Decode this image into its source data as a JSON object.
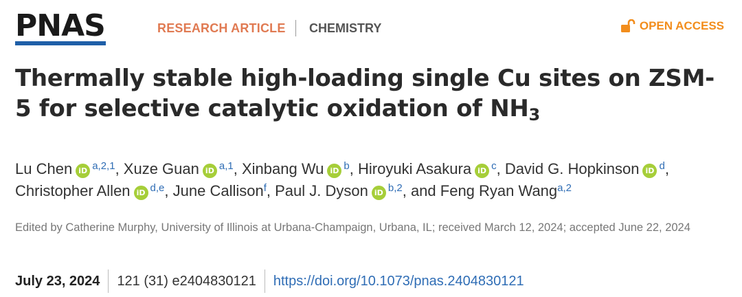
{
  "header": {
    "logo": "PNAS",
    "article_type": "RESEARCH ARTICLE",
    "subject": "CHEMISTRY",
    "open_access": "OPEN ACCESS",
    "open_access_icon": "unlocked-padlock-icon",
    "colors": {
      "logo_bar": "#1f5fa8",
      "article_type": "#e07a52",
      "open_access": "#f28d1c",
      "orcid": "#a6ce39",
      "link": "#2f6db5"
    }
  },
  "title": {
    "main": "Thermally stable high-loading single Cu sites on ZSM-5 for selective catalytic oxidation of NH",
    "subscript": "3"
  },
  "authors": [
    {
      "name": "Lu Chen",
      "orcid": true,
      "aff": "a,2,1",
      "sep": ", "
    },
    {
      "name": "Xuze Guan",
      "orcid": true,
      "aff": "a,1",
      "sep": ", "
    },
    {
      "name": "Xinbang Wu",
      "orcid": true,
      "aff": "b",
      "sep": ", "
    },
    {
      "name": "Hiroyuki Asakura",
      "orcid": true,
      "aff": "c",
      "sep": ", "
    },
    {
      "name": "David G. Hopkinson",
      "orcid": true,
      "aff": "d",
      "sep": ", "
    },
    {
      "name": "Christopher Allen",
      "orcid": true,
      "aff": "d,e",
      "sep": ", "
    },
    {
      "name": "June Callison",
      "orcid": false,
      "aff": "f",
      "sep": ", "
    },
    {
      "name": "Paul J. Dyson",
      "orcid": true,
      "aff": "b,2",
      "sep": ", and "
    },
    {
      "name": "Feng Ryan Wang",
      "orcid": false,
      "aff": "a,2",
      "sep": ""
    }
  ],
  "orcid_label": "iD",
  "editor": "Edited by Catherine Murphy, University of Illinois at Urbana-Champaign, Urbana, IL; received March 12, 2024; accepted June 22, 2024",
  "meta": {
    "date": "July 23, 2024",
    "citation": "121 (31) e2404830121",
    "doi": "https://doi.org/10.1073/pnas.2404830121"
  }
}
